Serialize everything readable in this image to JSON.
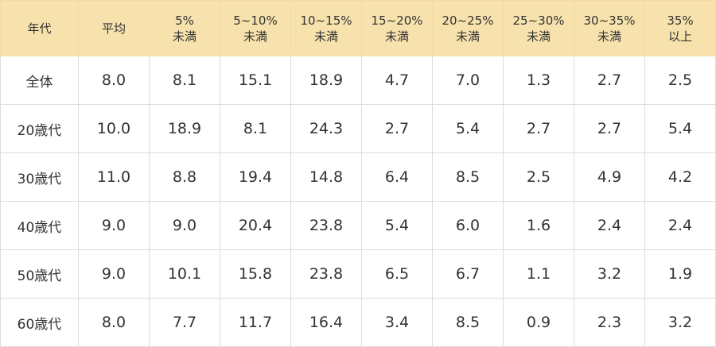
{
  "table": {
    "headers": [
      [
        "年代"
      ],
      [
        "平均"
      ],
      [
        "5%",
        "未満"
      ],
      [
        "5~10%",
        "未満"
      ],
      [
        "10~15%",
        "未満"
      ],
      [
        "15~20%",
        "未満"
      ],
      [
        "20~25%",
        "未満"
      ],
      [
        "25~30%",
        "未満"
      ],
      [
        "30~35%",
        "未満"
      ],
      [
        "35%",
        "以上"
      ]
    ],
    "rows": [
      [
        "全体",
        "8.0",
        "8.1",
        "15.1",
        "18.9",
        "4.7",
        "7.0",
        "1.3",
        "2.7",
        "2.5"
      ],
      [
        "20歳代",
        "10.0",
        "18.9",
        "8.1",
        "24.3",
        "2.7",
        "5.4",
        "2.7",
        "2.7",
        "5.4"
      ],
      [
        "30歳代",
        "11.0",
        "8.8",
        "19.4",
        "14.8",
        "6.4",
        "8.5",
        "2.5",
        "4.9",
        "4.2"
      ],
      [
        "40歳代",
        "9.0",
        "9.0",
        "20.4",
        "23.8",
        "5.4",
        "6.0",
        "1.6",
        "2.4",
        "2.4"
      ],
      [
        "50歳代",
        "9.0",
        "10.1",
        "15.8",
        "23.8",
        "6.5",
        "6.7",
        "1.1",
        "3.2",
        "1.9"
      ],
      [
        "60歳代",
        "8.0",
        "7.7",
        "11.7",
        "16.4",
        "3.4",
        "8.5",
        "0.9",
        "2.3",
        "3.2"
      ]
    ]
  },
  "colors": {
    "header_background": "#f7e2ad",
    "border": "#dcdcdc",
    "text": "#333333"
  }
}
